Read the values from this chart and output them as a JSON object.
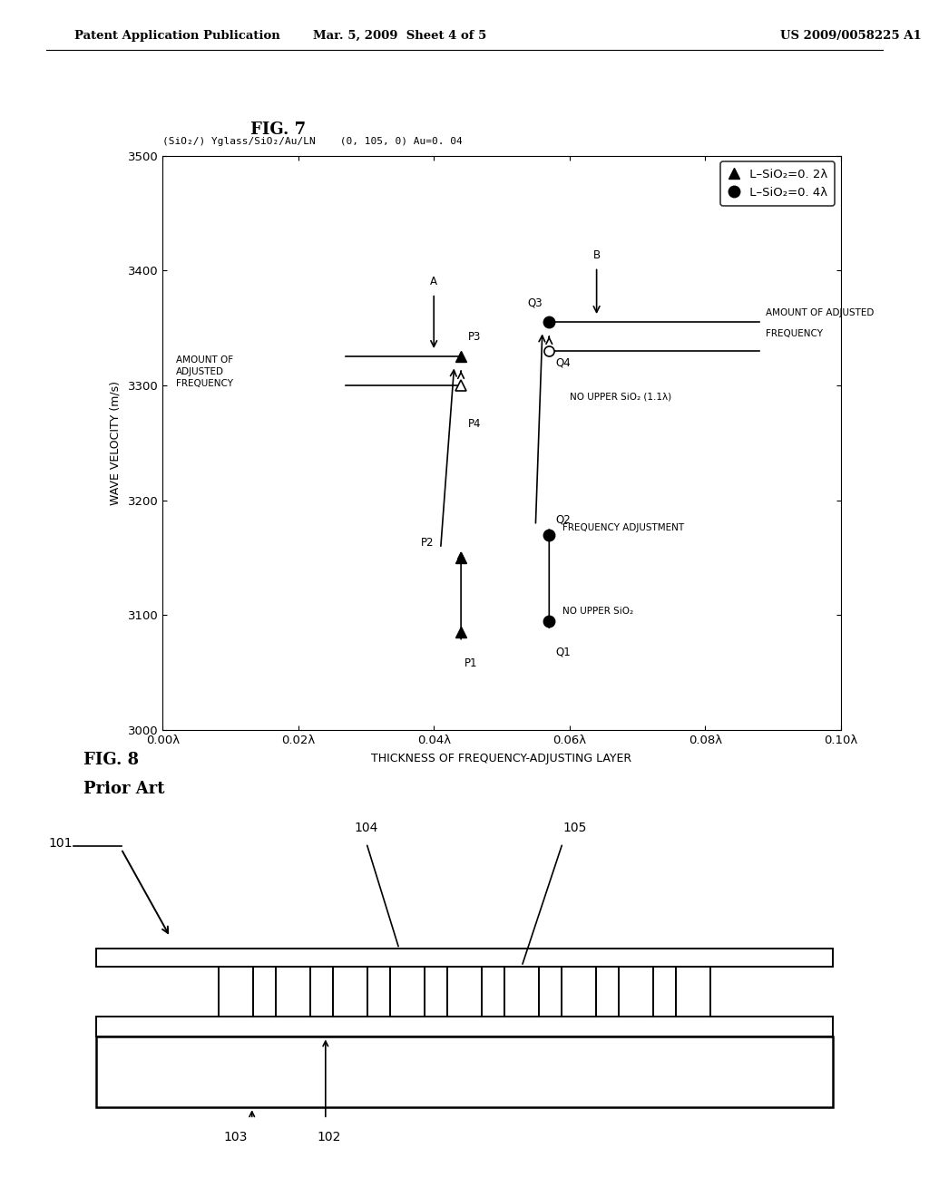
{
  "header_left": "Patent Application Publication",
  "header_mid": "Mar. 5, 2009  Sheet 4 of 5",
  "header_right": "US 2009/0058225 A1",
  "fig7_title": "FIG. 7",
  "fig7_subtitle": "(SiO₂/) Yglass/SiO₂/Au/LN    (0, 105, 0) Au=0. 04",
  "ylabel": "WAVE VELOCITY (m/s)",
  "xlabel": "THICKNESS OF FREQUENCY-ADJUSTING LAYER",
  "ylim": [
    3000,
    3500
  ],
  "xlim": [
    0.0,
    0.1
  ],
  "yticks": [
    3000,
    3100,
    3200,
    3300,
    3400,
    3500
  ],
  "xtick_labels": [
    "0.00λ",
    "0.02λ",
    "0.04λ",
    "0.06λ",
    "0.08λ",
    "0.10λ"
  ],
  "xtick_vals": [
    0.0,
    0.02,
    0.04,
    0.06,
    0.08,
    0.1
  ],
  "P_points": {
    "P1": [
      0.044,
      3085
    ],
    "P2": [
      0.044,
      3150
    ],
    "P3": [
      0.044,
      3325
    ],
    "P4": [
      0.044,
      3300
    ]
  },
  "Q_points": {
    "Q1": [
      0.057,
      3095
    ],
    "Q2": [
      0.057,
      3170
    ],
    "Q3": [
      0.057,
      3355
    ],
    "Q4": [
      0.057,
      3330
    ]
  },
  "fig8_title": "FIG. 8",
  "fig8_subtitle": "Prior Art",
  "label_101": "101",
  "label_102": "102",
  "label_103": "103",
  "label_104": "104",
  "label_105": "105",
  "bg_color": "#ffffff",
  "line_color": "#000000"
}
